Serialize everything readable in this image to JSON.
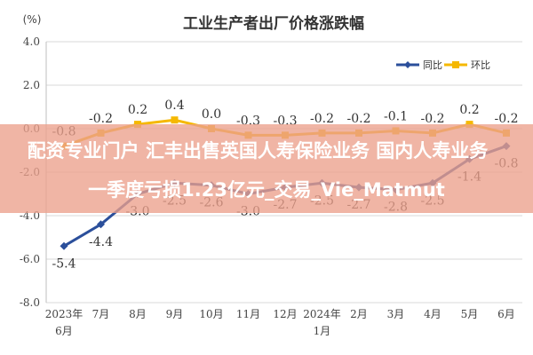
{
  "chart_data": {
    "type": "line",
    "title": "工业生产者出厂价格涨跌幅",
    "y_unit": "(%)",
    "ylim": [
      -8.0,
      4.0
    ],
    "y_ticks": [
      "4.0",
      "2.0",
      "0.0",
      "-2.0",
      "-4.0",
      "-6.0",
      "-8.0"
    ],
    "y_tick_values": [
      4,
      2,
      0,
      -2,
      -4,
      -6,
      -8
    ],
    "x_tick_labels": [
      {
        "line1": "2023年",
        "line2": "6月"
      },
      {
        "line1": "7月",
        "line2": ""
      },
      {
        "line1": "8月",
        "line2": ""
      },
      {
        "line1": "9月",
        "line2": ""
      },
      {
        "line1": "10月",
        "line2": ""
      },
      {
        "line1": "11月",
        "line2": ""
      },
      {
        "line1": "12月",
        "line2": ""
      },
      {
        "line1": "2024年",
        "line2": "1月"
      },
      {
        "line1": "2月",
        "line2": ""
      },
      {
        "line1": "3月",
        "line2": ""
      },
      {
        "line1": "4月",
        "line2": ""
      },
      {
        "line1": "5月",
        "line2": ""
      },
      {
        "line1": "6月",
        "line2": ""
      }
    ],
    "grid": true,
    "legend_position": "top-right",
    "series": [
      {
        "name": "同比",
        "color": "#2b4f9b",
        "values": [
          -5.4,
          -4.4,
          -3.0,
          -2.5,
          -2.6,
          -3.0,
          -2.7,
          -2.5,
          -2.7,
          -2.8,
          -2.5,
          -1.4,
          -0.8
        ],
        "labels": [
          "-5.4",
          "-4.4",
          "-3.0",
          "-2.5",
          "-2.6",
          "-3.0",
          "-2.7",
          "-2.5",
          "-2.7",
          "-2.8",
          "-2.5",
          "-1.4",
          "-0.8"
        ]
      },
      {
        "name": "环比",
        "color": "#f5b800",
        "values": [
          -0.8,
          -0.2,
          0.2,
          0.4,
          0.0,
          -0.3,
          -0.3,
          -0.2,
          -0.2,
          -0.1,
          -0.2,
          0.2,
          -0.2
        ],
        "labels": [
          "-0.8",
          "-0.2",
          "0.2",
          "0.4",
          "0.0",
          "-0.3",
          "-0.3",
          "-0.2",
          "-0.2",
          "-0.1",
          "-0.2",
          "0.2",
          "-0.2"
        ]
      }
    ]
  },
  "banner": {
    "line1": "配资专业门户 汇丰出售英国人寿保险业务 国内人寿业务",
    "line2": "一季度亏损1.23亿元_交易_Vie_Matmut"
  },
  "colors": {
    "grid": "#d9d9d9",
    "banner_bg": "#eca08c",
    "banner_text": "#ffffff"
  }
}
